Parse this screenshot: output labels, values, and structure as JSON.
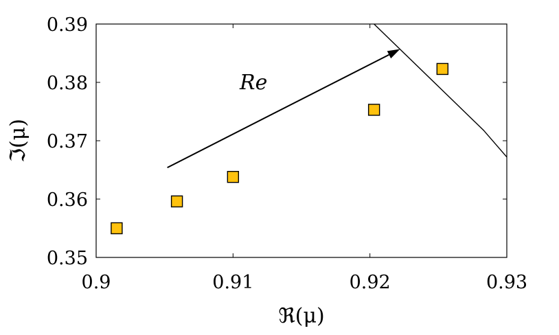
{
  "chart_data": {
    "type": "scatter",
    "xlabel": "ℜ(μ)",
    "ylabel": "ℑ(μ)",
    "xlim": [
      0.9,
      0.93
    ],
    "ylim": [
      0.35,
      0.39
    ],
    "xticks": [
      0.9,
      0.91,
      0.92,
      0.93
    ],
    "yticks": [
      0.35,
      0.36,
      0.37,
      0.38,
      0.39
    ],
    "xtick_labels": [
      "0.9",
      "0.91",
      "0.92",
      "0.93"
    ],
    "ytick_labels": [
      "0.35",
      "0.36",
      "0.37",
      "0.38",
      "0.39"
    ],
    "grid": false,
    "points": [
      {
        "x": 0.9015,
        "y": 0.355
      },
      {
        "x": 0.9059,
        "y": 0.3596
      },
      {
        "x": 0.91,
        "y": 0.3638
      },
      {
        "x": 0.9203,
        "y": 0.3753
      },
      {
        "x": 0.9253,
        "y": 0.3823
      }
    ],
    "marker_color": "#FFC20E",
    "marker_edge_color": "#000000",
    "curve": {
      "x": [
        0.9203,
        0.9283,
        0.93
      ],
      "y": [
        0.39,
        0.3718,
        0.3672
      ],
      "color": "#000000"
    },
    "arrow": {
      "from": {
        "x": 0.9052,
        "y": 0.3654
      },
      "to": {
        "x": 0.9222,
        "y": 0.3857
      },
      "label": "Re",
      "label_pos": {
        "x": 0.9115,
        "y": 0.38
      }
    }
  }
}
